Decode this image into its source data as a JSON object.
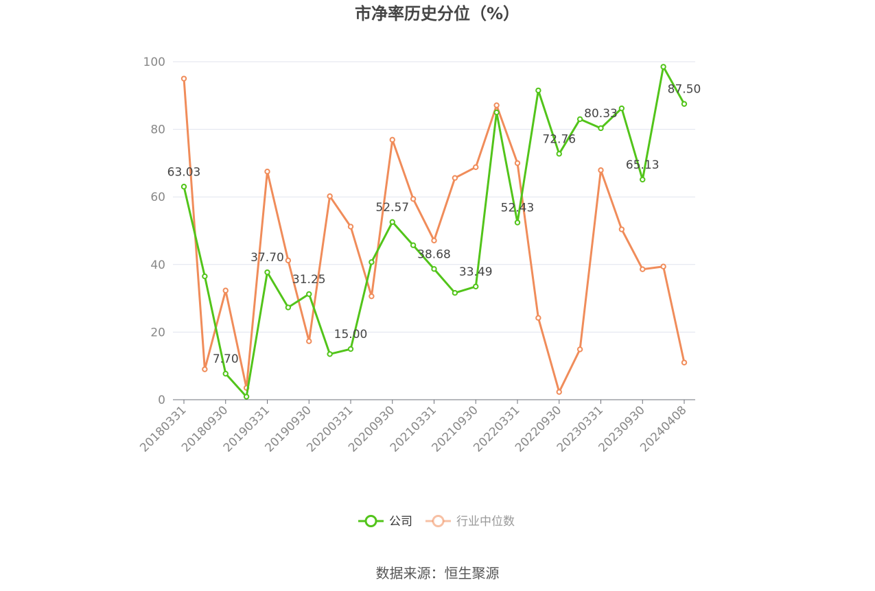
{
  "chart_data": {
    "type": "line",
    "title": "市净率历史分位（%）",
    "xlabel": "",
    "ylabel": "",
    "ylim": [
      0,
      100
    ],
    "yticks": [
      0,
      20,
      40,
      60,
      80,
      100
    ],
    "grid": true,
    "legend_position": "bottom",
    "x": [
      "20180331",
      "20180630",
      "20180930",
      "20181231",
      "20190331",
      "20190630",
      "20190930",
      "20191231",
      "20200331",
      "20200630",
      "20200930",
      "20201231",
      "20210331",
      "20210630",
      "20210930",
      "20211231",
      "20220331",
      "20220630",
      "20220930",
      "20221231",
      "20230331",
      "20230630",
      "20230930",
      "20231231",
      "20240408"
    ],
    "x_tick_labels": [
      "20180331",
      "20180930",
      "20190331",
      "20190930",
      "20200331",
      "20200930",
      "20210331",
      "20210930",
      "20220331",
      "20220930",
      "20230331",
      "20230930",
      "20240408"
    ],
    "series": [
      {
        "name": "公司",
        "color": "#52c41a",
        "values": [
          63.03,
          36.5,
          7.7,
          0.9,
          37.7,
          27.3,
          31.25,
          13.5,
          15.0,
          40.7,
          52.57,
          45.7,
          38.68,
          31.6,
          33.49,
          85.0,
          52.43,
          91.5,
          72.76,
          83.0,
          80.33,
          86.2,
          65.13,
          98.5,
          87.5
        ],
        "data_labels": {
          "0": "63.03",
          "2": "7.70",
          "4": "37.70",
          "6": "31.25",
          "8": "15.00",
          "10": "52.57",
          "12": "38.68",
          "14": "33.49",
          "16": "52.43",
          "18": "72.76",
          "20": "80.33",
          "22": "65.13",
          "24": "87.50"
        }
      },
      {
        "name": "行业中位数",
        "color": "#f08c5a",
        "values": [
          95.0,
          9.0,
          32.3,
          3.5,
          67.5,
          41.2,
          17.3,
          60.2,
          51.2,
          30.6,
          76.9,
          59.4,
          47.1,
          65.6,
          68.8,
          87.1,
          70.0,
          24.2,
          2.3,
          14.9,
          67.9,
          50.4,
          38.6,
          39.4,
          11.0
        ]
      }
    ]
  },
  "footer": {
    "source": "数据来源：恒生聚源"
  }
}
